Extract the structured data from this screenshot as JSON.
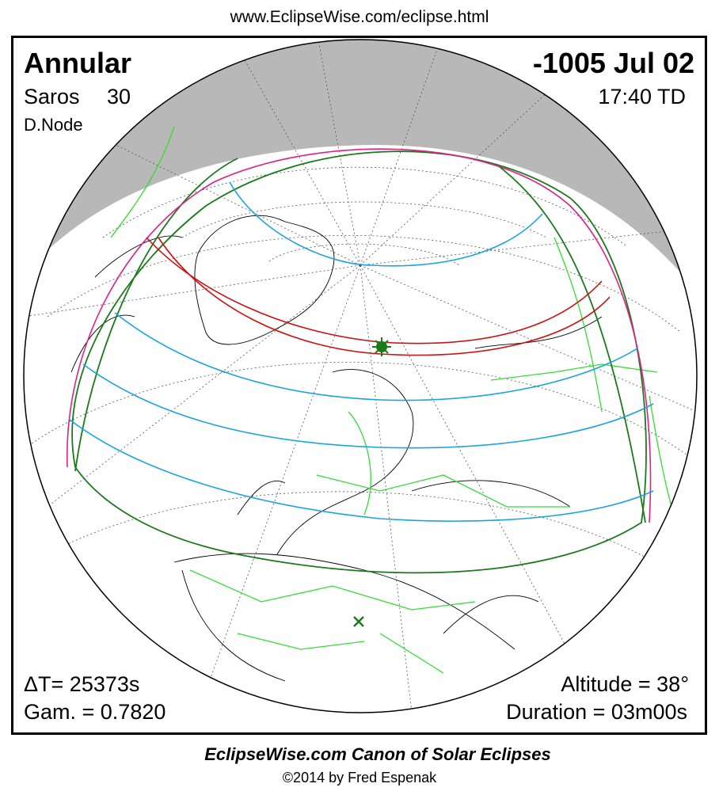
{
  "header": {
    "url": "www.EclipseWise.com/eclipse.html"
  },
  "eclipse": {
    "type": "Annular",
    "date": "-1005 Jul 02",
    "saros_label": "Saros",
    "saros_number": "30",
    "time": "17:40 TD",
    "node": "D.Node"
  },
  "parameters": {
    "delta_t": "ΔT=  25373s",
    "gamma": "Gam. = 0.7820",
    "altitude": "Altitude = 38°",
    "duration": "Duration = 03m00s"
  },
  "footer": {
    "title": "EclipseWise.com Canon of Solar Eclipses",
    "copyright": "©2014 by Fred Espenak"
  }
}
